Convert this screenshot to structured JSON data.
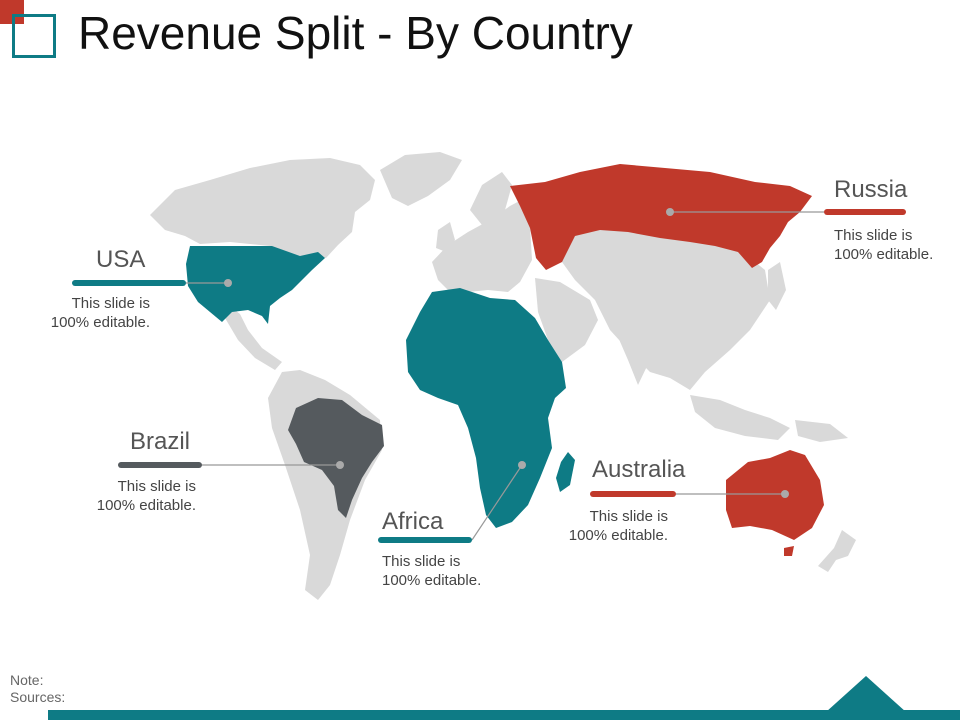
{
  "title": "Revenue Split - By Country",
  "colors": {
    "teal": "#0e7b85",
    "red": "#c0392b",
    "dark_gray": "#555a5e",
    "land": "#d9d9d9"
  },
  "regions": [
    {
      "id": "usa",
      "name": "USA",
      "desc_line1": "This slide is",
      "desc_line2": "100% editable.",
      "color": "#0e7b85"
    },
    {
      "id": "brazil",
      "name": "Brazil",
      "desc_line1": "This slide is",
      "desc_line2": "100% editable.",
      "color": "#555a5e"
    },
    {
      "id": "africa",
      "name": "Africa",
      "desc_line1": "This slide is",
      "desc_line2": "100% editable.",
      "color": "#0e7b85"
    },
    {
      "id": "australia",
      "name": "Australia",
      "desc_line1": "This slide is",
      "desc_line2": "100% editable.",
      "color": "#c0392b"
    },
    {
      "id": "russia",
      "name": "Russia",
      "desc_line1": "This slide is",
      "desc_line2": "100% editable.",
      "color": "#c0392b"
    }
  ],
  "footer": {
    "note": "Note:",
    "sources": "Sources:"
  }
}
